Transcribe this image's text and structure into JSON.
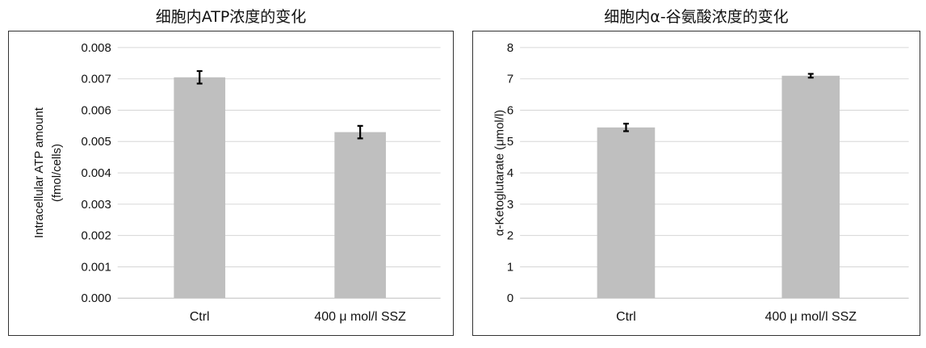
{
  "chart_data": [
    {
      "type": "bar",
      "title": "细胞内ATP浓度的变化",
      "ylabel_lines": [
        "Intracellular ATP amount",
        "(fmol/cells)"
      ],
      "categories": [
        "Ctrl",
        "400 μ mol/l SSZ"
      ],
      "values": [
        0.00705,
        0.0053
      ],
      "errors": [
        0.0002,
        0.0002
      ],
      "ylim": [
        0,
        0.008
      ],
      "yticks": [
        "0.000",
        "0.001",
        "0.002",
        "0.003",
        "0.004",
        "0.005",
        "0.006",
        "0.007",
        "0.008"
      ],
      "grid": true,
      "bar_color": "#bfbfbf"
    },
    {
      "type": "bar",
      "title": "细胞内α-谷氨酸浓度的变化",
      "ylabel_lines": [
        "α-Ketoglutarate (μmol/l)"
      ],
      "categories": [
        "Ctrl",
        "400 μ mol/l SSZ"
      ],
      "values": [
        5.45,
        7.1
      ],
      "errors": [
        0.12,
        0.06
      ],
      "ylim": [
        0,
        8
      ],
      "yticks": [
        "0",
        "1",
        "2",
        "3",
        "4",
        "5",
        "6",
        "7",
        "8"
      ],
      "grid": true,
      "bar_color": "#bfbfbf"
    }
  ]
}
